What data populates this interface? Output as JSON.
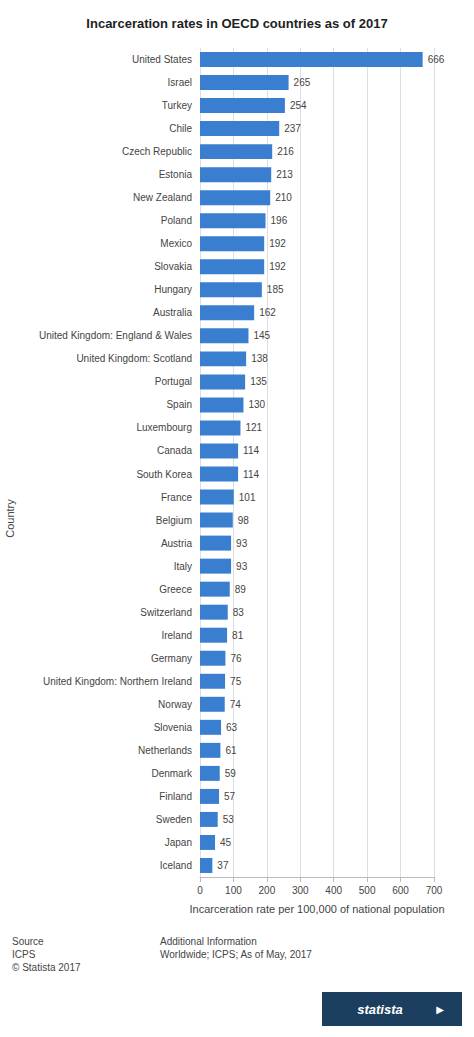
{
  "chart_data": {
    "type": "bar",
    "title": "Incarceration rates in OECD countries as of 2017",
    "orientation": "horizontal",
    "categories": [
      "United States",
      "Israel",
      "Turkey",
      "Chile",
      "Czech Republic",
      "Estonia",
      "New Zealand",
      "Poland",
      "Mexico",
      "Slovakia",
      "Hungary",
      "Australia",
      "United Kingdom: England & Wales",
      "United Kingdom: Scotland",
      "Portugal",
      "Spain",
      "Luxembourg",
      "Canada",
      "South Korea",
      "France",
      "Belgium",
      "Austria",
      "Italy",
      "Greece",
      "Switzerland",
      "Ireland",
      "Germany",
      "United Kingdom: Northern Ireland",
      "Norway",
      "Slovenia",
      "Netherlands",
      "Denmark",
      "Finland",
      "Sweden",
      "Japan",
      "Iceland"
    ],
    "values": [
      666,
      265,
      254,
      237,
      216,
      213,
      210,
      196,
      192,
      192,
      185,
      162,
      145,
      138,
      135,
      130,
      121,
      114,
      114,
      101,
      98,
      93,
      93,
      89,
      83,
      81,
      76,
      75,
      74,
      63,
      61,
      59,
      57,
      53,
      45,
      37
    ],
    "color": "#3a7ecf",
    "xlabel": "Incarceration rate per 100,000 of national population",
    "ylabel": "Country",
    "xlim": [
      0,
      700
    ],
    "xticks": [
      0,
      100,
      200,
      300,
      400,
      500,
      600,
      700
    ],
    "grid": true,
    "data_labels": true,
    "annotations": [
      "Source\nICPS\n© Statista 2017",
      "Additional Information\nWorldwide; ICPS; As of May, 2017",
      "statista",
      "▶"
    ]
  }
}
